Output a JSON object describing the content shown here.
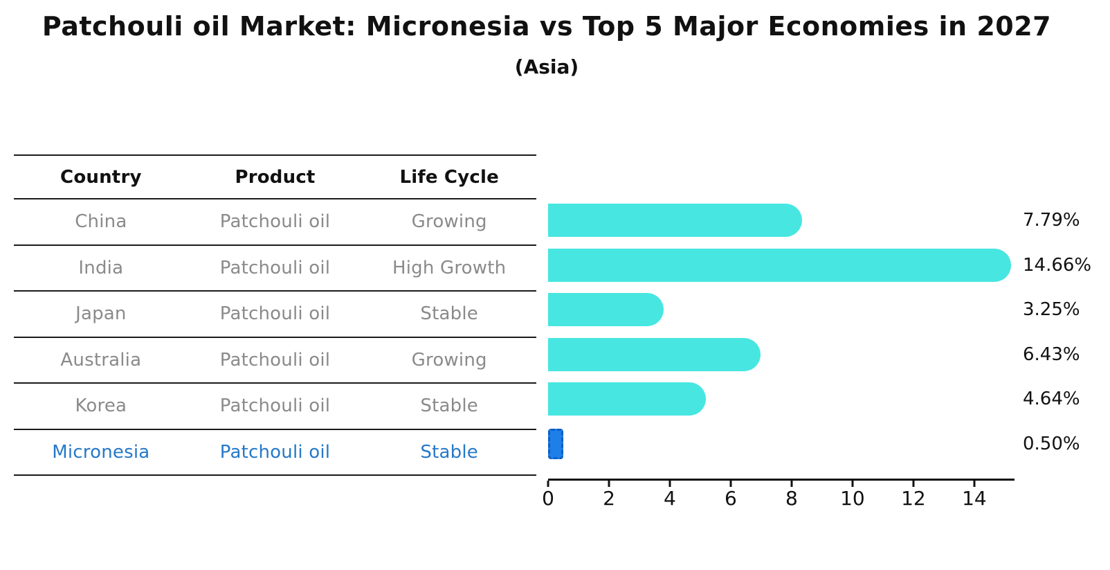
{
  "title": "Patchouli oil Market: Micronesia vs Top 5 Major Economies in 2027",
  "subtitle": "(Asia)",
  "table": {
    "headers": [
      "Country",
      "Product",
      "Life Cycle"
    ],
    "rows": [
      {
        "country": "China",
        "product": "Patchouli oil",
        "life_cycle": "Growing",
        "highlight": false
      },
      {
        "country": "India",
        "product": "Patchouli oil",
        "life_cycle": "High Growth",
        "highlight": false
      },
      {
        "country": "Japan",
        "product": "Patchouli oil",
        "life_cycle": "Stable",
        "highlight": false
      },
      {
        "country": "Australia",
        "product": "Patchouli oil",
        "life_cycle": "Growing",
        "highlight": false
      },
      {
        "country": "Korea",
        "product": "Patchouli oil",
        "life_cycle": "Stable",
        "highlight": false
      },
      {
        "country": "Micronesia",
        "product": "Patchouli oil",
        "life_cycle": "Stable",
        "highlight": true
      }
    ]
  },
  "chart_data": {
    "type": "bar",
    "orientation": "horizontal",
    "title": "Patchouli oil Market: Micronesia vs Top 5 Major Economies in 2027",
    "subtitle": "(Asia)",
    "categories": [
      "China",
      "India",
      "Japan",
      "Australia",
      "Korea",
      "Micronesia"
    ],
    "values": [
      7.79,
      14.66,
      3.25,
      6.43,
      4.64,
      0.5
    ],
    "value_labels": [
      "7.79%",
      "14.66%",
      "3.25%",
      "6.43%",
      "4.64%",
      "0.50%"
    ],
    "x_ticks": [
      0,
      2,
      4,
      6,
      8,
      10,
      12,
      14
    ],
    "xlim": [
      0,
      15.32
    ],
    "grid": false,
    "legend": "none",
    "value_label_position": "right-outside",
    "bar_color": "#48e6e1",
    "highlight_color": "#1e7fe8",
    "highlight_index": 5,
    "highlight_text_color": "#2678c8",
    "row_text_color": "#8a8a8a",
    "axis_color": "#111111"
  }
}
